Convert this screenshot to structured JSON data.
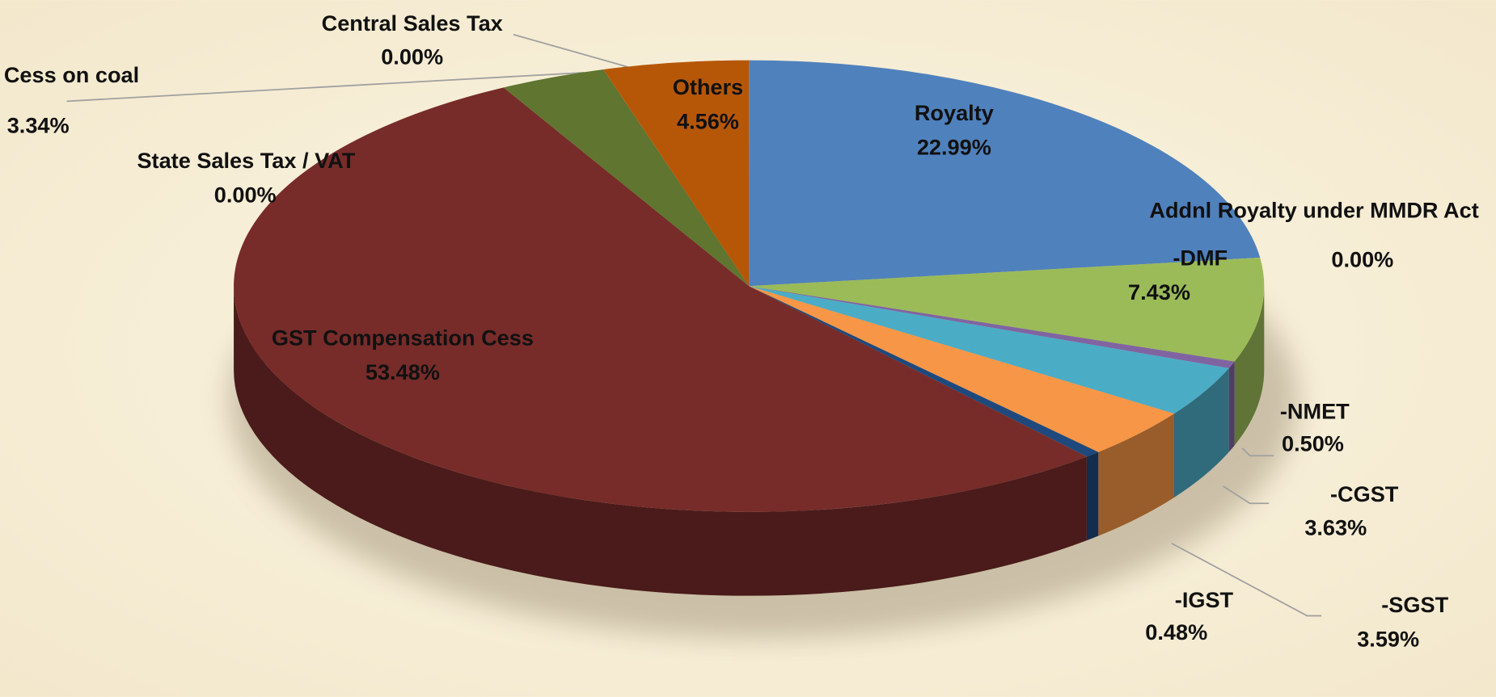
{
  "chart_data": {
    "type": "pie3d",
    "categories": [
      "Royalty",
      "Addnl Royalty under MMDR Act",
      "-DMF",
      "-NMET",
      "-CGST",
      "-SGST",
      "-IGST",
      "GST Compensation Cess",
      "State Sales Tax / VAT",
      "Cess on coal",
      "Central Sales Tax",
      "Others"
    ],
    "values": [
      22.99,
      0.0,
      7.43,
      0.5,
      3.63,
      3.59,
      0.48,
      53.48,
      0.0,
      3.34,
      0.0,
      4.56
    ],
    "value_labels": [
      "22.99%",
      "0.00%",
      "7.43%",
      "0.50%",
      "3.63%",
      "3.59%",
      "0.48%",
      "53.48%",
      "0.00%",
      "3.34%",
      "0.00%",
      "4.56%"
    ],
    "colors": [
      "#4f81bd",
      "#c0504d",
      "#9bbb59",
      "#8064a2",
      "#4bacc6",
      "#f79646",
      "#1f497d",
      "#772c2a",
      "#8064a2",
      "#5f7530",
      "#4bacc6",
      "#b65708"
    ]
  }
}
